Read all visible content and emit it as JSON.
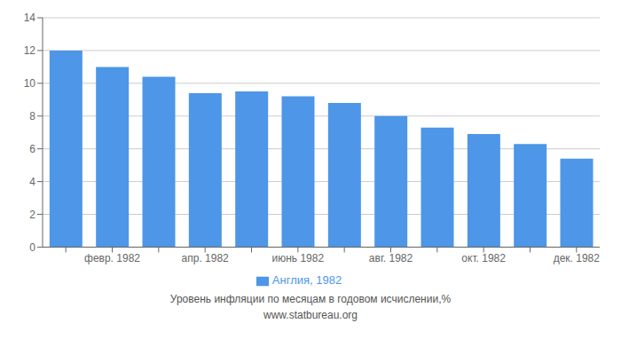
{
  "chart_data": {
    "type": "bar",
    "categories": [
      null,
      "февр. 1982",
      null,
      "апр. 1982",
      null,
      "июнь 1982",
      null,
      "авг. 1982",
      null,
      "окт. 1982",
      null,
      "дек. 1982"
    ],
    "series": [
      {
        "name": "Англия, 1982",
        "color": "#4D96E8",
        "values": [
          12.0,
          11.0,
          10.4,
          9.4,
          9.5,
          9.2,
          8.8,
          8.0,
          7.3,
          6.9,
          6.3,
          5.4
        ]
      }
    ],
    "ylim": [
      0,
      14
    ],
    "yticks": [
      0,
      2,
      4,
      6,
      8,
      10,
      12,
      14
    ],
    "grid": true,
    "legend": "bottom",
    "annotations": [
      "Уровень инфляции по месяцам в годовом исчислении,%",
      "www.statbureau.org"
    ]
  }
}
